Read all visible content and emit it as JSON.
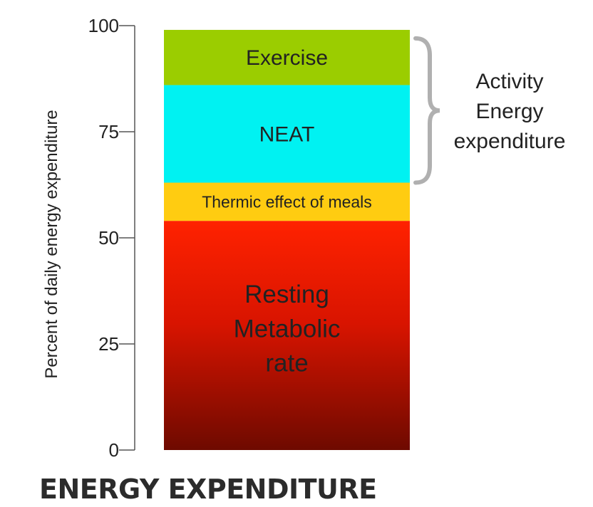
{
  "chart_data": {
    "type": "bar",
    "stacked": true,
    "ylabel": "Percent of daily energy expenditure",
    "ylim": [
      0,
      100
    ],
    "yticks": [
      0,
      25,
      50,
      75,
      100
    ],
    "grid": false,
    "series": [
      {
        "name": "Resting Metabolic rate",
        "lines": [
          "Resting",
          "Metabolic",
          "rate"
        ],
        "from": 0,
        "to": 54,
        "color_top": "#ff2200",
        "color_bottom": "#6e0a00"
      },
      {
        "name": "Thermic effect of meals",
        "lines": [
          "Thermic effect of meals"
        ],
        "from": 54,
        "to": 63,
        "color": "#ffcc11"
      },
      {
        "name": "NEAT",
        "lines": [
          "NEAT"
        ],
        "from": 63,
        "to": 86,
        "color": "#00f2f2"
      },
      {
        "name": "Exercise",
        "lines": [
          "Exercise"
        ],
        "from": 86,
        "to": 99,
        "color": "#9bcd00"
      }
    ],
    "annotation": {
      "label_lines": [
        "Activity",
        "Energy",
        "expenditure"
      ],
      "from": 63,
      "to": 97,
      "color": "#b0b0b0"
    }
  },
  "footer": {
    "title": "ENERGY EXPENDITURE"
  }
}
